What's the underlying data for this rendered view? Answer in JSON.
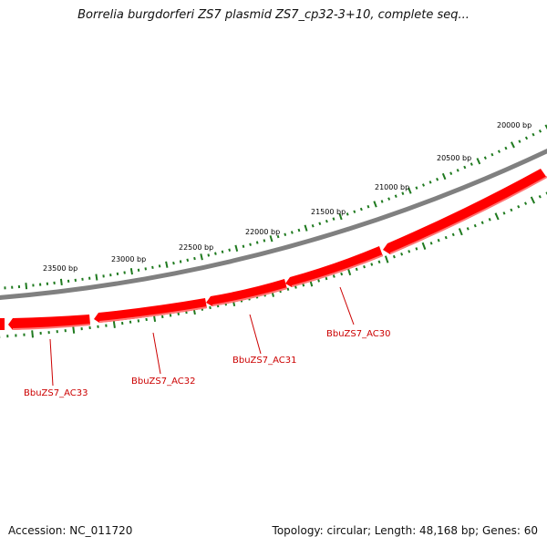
{
  "title": "Borrelia burgdorferi ZS7 plasmid ZS7_cp32-3+10, complete seq...",
  "footer": {
    "accession": "Accession: NC_011720",
    "summary": "Topology: circular; Length: 48,168 bp; Genes: 60"
  },
  "colors": {
    "backbone": "#808080",
    "gene_fill": "#ff0000",
    "gene_highlight": "#ff7777",
    "tick": "#1f7a1f",
    "gene_label": "#cc0000"
  },
  "scale_labels": [
    "20000 bp",
    "20500 bp",
    "21000 bp",
    "21500 bp",
    "22000 bp",
    "22500 bp",
    "23000 bp",
    "23500 bp"
  ],
  "genes": [
    {
      "label": "BbuZS7_AC30",
      "strand": "minus"
    },
    {
      "label": "BbuZS7_AC31",
      "strand": "minus"
    },
    {
      "label": "BbuZS7_AC32",
      "strand": "minus"
    },
    {
      "label": "BbuZS7_AC33",
      "strand": "minus"
    }
  ]
}
